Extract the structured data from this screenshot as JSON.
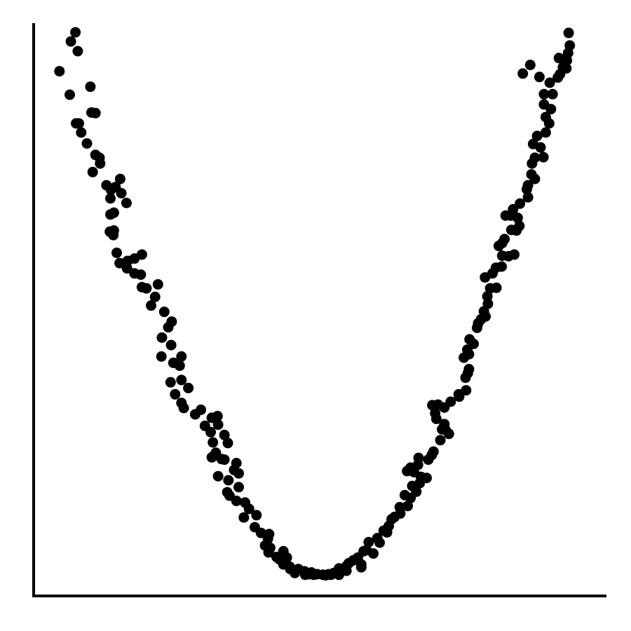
{
  "chart_data": {
    "type": "scatter",
    "title": "",
    "xlabel": "",
    "ylabel": "",
    "xlim": [
      0,
      100
    ],
    "ylim": [
      0,
      100
    ],
    "grid": false,
    "legend": "none",
    "axes": {
      "x_ticks": false,
      "y_ticks": false
    },
    "colors": {
      "point": "#000000",
      "axis": "#000000",
      "background": "#ffffff"
    },
    "series": [
      {
        "points": [
          [
            4.5,
            91.6
          ],
          [
            6.5,
            96.8
          ],
          [
            7.3,
            98.4
          ],
          [
            7.7,
            95.1
          ],
          [
            6.3,
            87.5
          ],
          [
            9.9,
            88.9
          ],
          [
            7.4,
            82.5
          ],
          [
            7.9,
            82.5
          ],
          [
            8.3,
            80.9
          ],
          [
            10.1,
            84.4
          ],
          [
            10.8,
            84.3
          ],
          [
            9.3,
            79.0
          ],
          [
            10.8,
            77.0
          ],
          [
            11.5,
            76.5
          ],
          [
            11.6,
            75.5
          ],
          [
            10.3,
            74.0
          ],
          [
            12.7,
            71.7
          ],
          [
            13.5,
            70.9
          ],
          [
            14.3,
            71.4
          ],
          [
            15.1,
            72.8
          ],
          [
            15.3,
            70.3
          ],
          [
            13.4,
            69.4
          ],
          [
            16.2,
            68.6
          ],
          [
            13.4,
            66.6
          ],
          [
            14.0,
            66.9
          ],
          [
            14.0,
            63.8
          ],
          [
            13.9,
            63.0
          ],
          [
            13.3,
            63.6
          ],
          [
            14.5,
            59.9
          ],
          [
            15.0,
            58.1
          ],
          [
            16.4,
            58.5
          ],
          [
            17.6,
            58.9
          ],
          [
            18.9,
            59.6
          ],
          [
            16.3,
            57.2
          ],
          [
            17.6,
            56.3
          ],
          [
            18.7,
            56.1
          ],
          [
            18.9,
            53.9
          ],
          [
            19.7,
            53.7
          ],
          [
            21.7,
            54.4
          ],
          [
            21.2,
            52.2
          ],
          [
            20.5,
            50.7
          ],
          [
            22.8,
            49.6
          ],
          [
            24.1,
            47.9
          ],
          [
            23.5,
            46.9
          ],
          [
            22.4,
            45.1
          ],
          [
            24.0,
            43.8
          ],
          [
            22.3,
            41.8
          ],
          [
            24.4,
            40.7
          ],
          [
            25.8,
            41.8
          ],
          [
            25.5,
            40.2
          ],
          [
            25.8,
            37.7
          ],
          [
            23.9,
            37.3
          ],
          [
            27.0,
            36.3
          ],
          [
            24.7,
            35.2
          ],
          [
            25.8,
            33.7
          ],
          [
            26.2,
            32.8
          ],
          [
            28.2,
            31.7
          ],
          [
            29.2,
            32.5
          ],
          [
            31.1,
            31.1
          ],
          [
            32.1,
            31.4
          ],
          [
            32.2,
            29.9
          ],
          [
            29.9,
            29.7
          ],
          [
            30.9,
            28.6
          ],
          [
            33.3,
            28.1
          ],
          [
            31.3,
            26.8
          ],
          [
            33.9,
            26.7
          ],
          [
            31.8,
            25.0
          ],
          [
            31.1,
            24.2
          ],
          [
            32.8,
            23.9
          ],
          [
            33.3,
            23.8
          ],
          [
            35.0,
            22.0
          ],
          [
            35.4,
            23.2
          ],
          [
            32.2,
            20.9
          ],
          [
            35.8,
            21.4
          ],
          [
            34.0,
            20.2
          ],
          [
            33.8,
            18.1
          ],
          [
            35.8,
            19.0
          ],
          [
            34.2,
            17.5
          ],
          [
            35.4,
            16.6
          ],
          [
            36.9,
            16.3
          ],
          [
            37.6,
            15.2
          ],
          [
            38.9,
            14.1
          ],
          [
            36.7,
            13.7
          ],
          [
            38.6,
            12.0
          ],
          [
            41.1,
            10.8
          ],
          [
            40.9,
            10.0
          ],
          [
            39.7,
            11.0
          ],
          [
            40.4,
            8.8
          ],
          [
            41.3,
            8.4
          ],
          [
            41.0,
            7.6
          ],
          [
            43.6,
            7.8
          ],
          [
            42.4,
            6.8
          ],
          [
            42.9,
            6.4
          ],
          [
            44.2,
            6.7
          ],
          [
            43.6,
            5.5
          ],
          [
            44.7,
            5.1
          ],
          [
            44.8,
            4.7
          ],
          [
            46.2,
            4.7
          ],
          [
            45.6,
            4.0
          ],
          [
            47.5,
            4.0
          ],
          [
            47.3,
            4.3
          ],
          [
            47.4,
            3.7
          ],
          [
            48.5,
            4.1
          ],
          [
            48.9,
            3.7
          ],
          [
            48.1,
            3.8
          ],
          [
            49.5,
            3.8
          ],
          [
            50.5,
            3.7
          ],
          [
            51.0,
            3.6
          ],
          [
            51.5,
            3.8
          ],
          [
            51.9,
            3.7
          ],
          [
            52.4,
            4.0
          ],
          [
            53.3,
            3.7
          ],
          [
            53.3,
            4.8
          ],
          [
            54.6,
            4.4
          ],
          [
            54.6,
            5.2
          ],
          [
            55.0,
            5.7
          ],
          [
            55.8,
            6.2
          ],
          [
            56.6,
            6.7
          ],
          [
            57.2,
            5.5
          ],
          [
            57.2,
            5.0
          ],
          [
            57.6,
            7.8
          ],
          [
            58.1,
            8.0
          ],
          [
            59.3,
            7.4
          ],
          [
            58.5,
            9.4
          ],
          [
            60.4,
            9.3
          ],
          [
            60.0,
            10.1
          ],
          [
            61.7,
            11.1
          ],
          [
            61.1,
            11.4
          ],
          [
            62.0,
            12.2
          ],
          [
            62.5,
            13.4
          ],
          [
            63.0,
            13.8
          ],
          [
            64.0,
            14.4
          ],
          [
            63.9,
            15.5
          ],
          [
            65.3,
            15.7
          ],
          [
            65.8,
            17.1
          ],
          [
            64.8,
            17.6
          ],
          [
            66.8,
            18.2
          ],
          [
            66.1,
            19.2
          ],
          [
            67.4,
            19.7
          ],
          [
            68.6,
            20.6
          ],
          [
            67.6,
            20.8
          ],
          [
            66.4,
            21.6
          ],
          [
            65.2,
            21.8
          ],
          [
            65.8,
            22.4
          ],
          [
            67.1,
            22.9
          ],
          [
            67.2,
            24.1
          ],
          [
            68.9,
            23.8
          ],
          [
            69.5,
            24.6
          ],
          [
            69.8,
            25.2
          ],
          [
            71.0,
            27.2
          ],
          [
            71.3,
            29.1
          ],
          [
            72.5,
            28.3
          ],
          [
            71.9,
            29.0
          ],
          [
            71.7,
            30.0
          ],
          [
            70.3,
            30.9
          ],
          [
            70.1,
            31.9
          ],
          [
            71.7,
            32.9
          ],
          [
            69.6,
            33.3
          ],
          [
            70.6,
            33.4
          ],
          [
            72.8,
            33.9
          ],
          [
            74.3,
            34.8
          ],
          [
            74.2,
            35.2
          ],
          [
            75.5,
            35.9
          ],
          [
            75.4,
            38.1
          ],
          [
            75.8,
            38.9
          ],
          [
            76.0,
            39.6
          ],
          [
            75.1,
            41.6
          ],
          [
            76.0,
            42.2
          ],
          [
            75.7,
            43.0
          ],
          [
            76.8,
            44.0
          ],
          [
            76.1,
            44.8
          ],
          [
            77.4,
            46.8
          ],
          [
            77.6,
            47.6
          ],
          [
            78.1,
            48.3
          ],
          [
            78.9,
            48.8
          ],
          [
            78.6,
            49.7
          ],
          [
            79.3,
            51.0
          ],
          [
            79.2,
            52.3
          ],
          [
            79.7,
            53.7
          ],
          [
            80.8,
            53.8
          ],
          [
            78.8,
            55.6
          ],
          [
            80.1,
            56.3
          ],
          [
            80.7,
            57.3
          ],
          [
            81.7,
            57.5
          ],
          [
            81.8,
            59.4
          ],
          [
            82.9,
            59.3
          ],
          [
            83.9,
            59.6
          ],
          [
            81.2,
            61.1
          ],
          [
            81.8,
            61.6
          ],
          [
            82.2,
            62.3
          ],
          [
            83.4,
            63.9
          ],
          [
            84.3,
            63.8
          ],
          [
            84.8,
            64.6
          ],
          [
            84.5,
            66.0
          ],
          [
            82.4,
            66.4
          ],
          [
            83.3,
            66.4
          ],
          [
            83.7,
            67.5
          ],
          [
            84.9,
            68.5
          ],
          [
            86.3,
            69.6
          ],
          [
            86.1,
            71.0
          ],
          [
            86.3,
            71.7
          ],
          [
            86.9,
            73.6
          ],
          [
            87.5,
            72.8
          ],
          [
            87.0,
            75.5
          ],
          [
            87.5,
            76.5
          ],
          [
            89.0,
            76.6
          ],
          [
            88.5,
            78.3
          ],
          [
            87.2,
            78.9
          ],
          [
            87.9,
            80.3
          ],
          [
            89.4,
            80.9
          ],
          [
            90.0,
            82.5
          ],
          [
            89.4,
            83.6
          ],
          [
            90.3,
            85.0
          ],
          [
            89.1,
            85.8
          ],
          [
            89.1,
            87.6
          ],
          [
            90.6,
            87.6
          ],
          [
            90.1,
            89.6
          ],
          [
            91.5,
            90.5
          ],
          [
            91.9,
            91.1
          ],
          [
            91.7,
            93.9
          ],
          [
            92.6,
            93.7
          ],
          [
            92.4,
            92.3
          ],
          [
            93.1,
            93.5
          ],
          [
            93.3,
            94.8
          ],
          [
            93.6,
            96.1
          ],
          [
            93.4,
            98.3
          ],
          [
            93.0,
            92.1
          ],
          [
            88.3,
            90.6
          ],
          [
            86.7,
            92.7
          ],
          [
            85.4,
            91.2
          ]
        ]
      }
    ]
  }
}
